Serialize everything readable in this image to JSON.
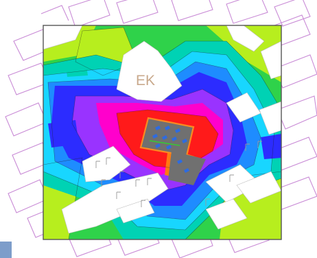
{
  "map": {
    "building_label": "EK",
    "legend": "none",
    "colors": {
      "red": "#ff1a1a",
      "magenta": "#ff00cc",
      "purple": "#9933ff",
      "blue": "#2c2cff",
      "light_blue": "#1e8cff",
      "cyan": "#18d6ff",
      "teal": "#00d2b4",
      "green": "#2fd24a",
      "yellow_green": "#b7ee1e",
      "orange": "#ff7a10",
      "rooftop_gray": "#707070",
      "parcel_lines": "#c98bd6",
      "frame": "#555555"
    },
    "icons": [
      "antenna-icon",
      "tree-symbol-icon"
    ]
  }
}
